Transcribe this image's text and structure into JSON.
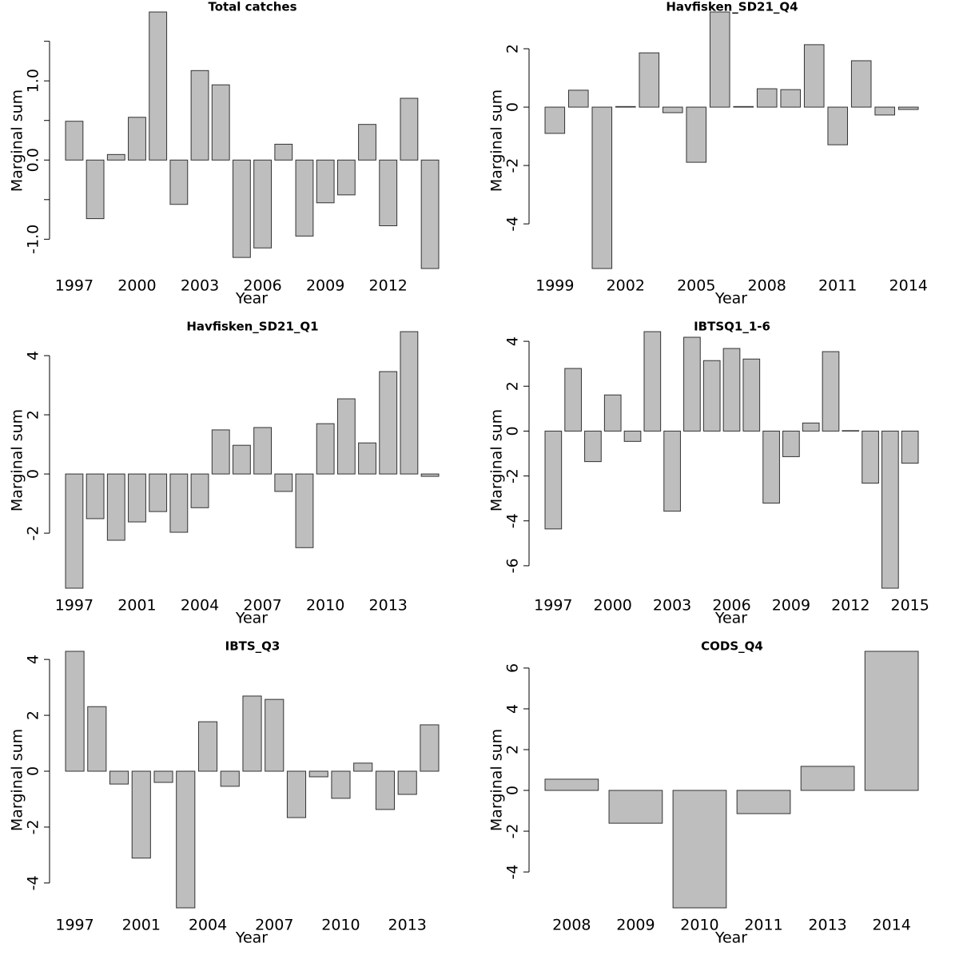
{
  "chart_data": [
    {
      "type": "bar",
      "title": "Total catches",
      "xlabel": "Year",
      "ylabel": "Marginal sum",
      "color": "#bebebe",
      "categories": [
        "1997",
        null,
        null,
        "2000",
        null,
        null,
        "2003",
        null,
        null,
        "2006",
        null,
        null,
        "2009",
        null,
        null,
        "2012",
        null,
        null
      ],
      "values": [
        0.49,
        -0.74,
        0.07,
        0.54,
        1.87,
        -0.56,
        1.13,
        0.95,
        -1.23,
        -1.11,
        0.2,
        -0.96,
        -0.54,
        -0.44,
        0.45,
        -0.83,
        0.78,
        -1.37
      ],
      "ylim": [
        -1.37,
        1.87
      ],
      "yticks": [
        {
          "value": -1,
          "label": "-1.0"
        },
        {
          "value": 0,
          "label": "0.0"
        },
        {
          "value": 1,
          "label": "1.0"
        }
      ],
      "yminorticks": [
        -0.5,
        0.5,
        1.5
      ]
    },
    {
      "type": "bar",
      "title": "Havfisken_SD21_Q4",
      "xlabel": "Year",
      "ylabel": "Marginal sum",
      "color": "#bebebe",
      "categories": [
        "1999",
        null,
        null,
        "2002",
        null,
        null,
        "2005",
        null,
        null,
        "2008",
        null,
        null,
        "2011",
        null,
        null,
        "2014"
      ],
      "values": [
        -0.9,
        0.58,
        -5.53,
        0.02,
        1.86,
        -0.19,
        -1.89,
        3.26,
        0.02,
        0.63,
        0.6,
        2.14,
        -1.29,
        1.59,
        -0.27,
        -0.08
      ],
      "ylim": [
        -5.53,
        3.26
      ],
      "yticks": [
        -4,
        -2,
        0,
        2
      ]
    },
    {
      "type": "bar",
      "title": "Havfisken_SD21_Q1",
      "xlabel": "Year",
      "ylabel": "Marginal sum",
      "color": "#bebebe",
      "categories": [
        "1997",
        null,
        null,
        "2001",
        null,
        null,
        "2004",
        null,
        null,
        "2007",
        null,
        null,
        "2010",
        null,
        null,
        "2013",
        null,
        null
      ],
      "values": [
        -3.86,
        -1.51,
        -2.24,
        -1.62,
        -1.27,
        -1.97,
        -1.14,
        1.49,
        0.97,
        1.57,
        -0.59,
        -2.49,
        1.7,
        2.54,
        1.05,
        3.46,
        4.81,
        -0.08
      ],
      "ylim": [
        -3.86,
        4.81
      ],
      "yticks": [
        -2,
        0,
        2,
        4
      ]
    },
    {
      "type": "bar",
      "title": "IBTSQ1_1-6",
      "xlabel": "Year",
      "ylabel": "Marginal sum",
      "color": "#bebebe",
      "categories": [
        "1997",
        null,
        null,
        "2000",
        null,
        null,
        "2003",
        null,
        null,
        "2006",
        null,
        null,
        "2009",
        null,
        null,
        "2012",
        null,
        null,
        "2015"
      ],
      "values": [
        -4.36,
        2.79,
        -1.36,
        1.61,
        -0.46,
        4.43,
        -3.57,
        4.18,
        3.14,
        3.68,
        3.21,
        -3.21,
        -1.14,
        0.36,
        3.54,
        0.02,
        -2.32,
        -7.0,
        -1.43
      ],
      "ylim": [
        -7.0,
        4.43
      ],
      "yticks": [
        -6,
        -4,
        -2,
        0,
        2,
        4
      ]
    },
    {
      "type": "bar",
      "title": "IBTS_Q3",
      "xlabel": "Year",
      "ylabel": "Marginal sum",
      "color": "#bebebe",
      "categories": [
        "1997",
        null,
        null,
        "2001",
        null,
        null,
        "2004",
        null,
        null,
        "2007",
        null,
        null,
        "2010",
        null,
        null,
        "2013",
        null
      ],
      "values": [
        4.29,
        2.31,
        -0.46,
        -3.11,
        -0.4,
        -4.89,
        1.77,
        -0.54,
        2.69,
        2.57,
        -1.66,
        -0.2,
        -0.97,
        0.29,
        -1.37,
        -0.83,
        1.66
      ],
      "ylim": [
        -4.89,
        4.29
      ],
      "yticks": [
        -4,
        -2,
        0,
        2,
        4
      ]
    },
    {
      "type": "bar",
      "title": "CODS_Q4",
      "xlabel": "Year",
      "ylabel": "Marginal sum",
      "color": "#bebebe",
      "categories": [
        "2008",
        "2009",
        "2010",
        "2011",
        "2013",
        "2014"
      ],
      "values": [
        0.55,
        -1.61,
        -5.76,
        -1.14,
        1.18,
        6.82
      ],
      "ylim": [
        -5.76,
        6.82
      ],
      "yticks": [
        -4,
        -2,
        0,
        2,
        4,
        6
      ]
    }
  ]
}
